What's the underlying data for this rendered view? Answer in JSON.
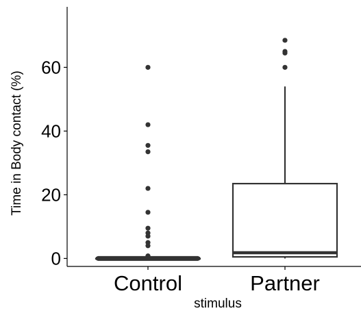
{
  "chart_data": {
    "type": "box",
    "xlabel": "stimulus",
    "ylabel": "Time in Body contact (%)",
    "ylim": [
      -2.5,
      79
    ],
    "yticks": [
      0,
      20,
      40,
      60
    ],
    "categories": [
      "Control",
      "Partner"
    ],
    "boxes": [
      {
        "category": "Control",
        "whisker_low": 0,
        "q1": 0,
        "median": 0,
        "q3": 0,
        "whisker_high": 0,
        "outliers": [
          60,
          42,
          35.5,
          33.5,
          22,
          14.5,
          9.5,
          8,
          7,
          5,
          4,
          0.8,
          0.6,
          0.5,
          0.4,
          0.3,
          0.2,
          0.1
        ]
      },
      {
        "category": "Partner",
        "whisker_low": 0,
        "q1": 0.5,
        "median": 1.8,
        "q3": 23.5,
        "whisker_high": 54,
        "outliers": [
          60,
          64.5,
          65,
          68.5
        ]
      }
    ],
    "colors": {
      "box": "#333333",
      "outlier": "#333333",
      "axis": "#000000"
    }
  }
}
